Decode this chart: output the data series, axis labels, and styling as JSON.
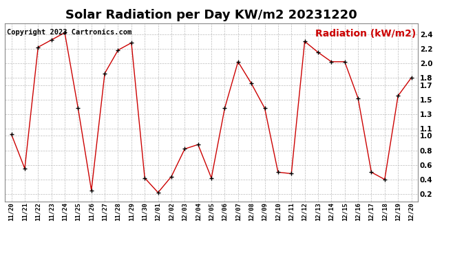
{
  "title": "Solar Radiation per Day KW/m2 20231220",
  "copyright_text": "Copyright 2023 Cartronics.com",
  "legend_label": "Radiation (kW/m2)",
  "labels": [
    "11/20",
    "11/21",
    "11/22",
    "11/23",
    "11/24",
    "11/25",
    "11/26",
    "11/27",
    "11/28",
    "11/29",
    "11/30",
    "12/01",
    "12/02",
    "12/03",
    "12/04",
    "12/05",
    "12/06",
    "12/07",
    "12/08",
    "12/09",
    "12/10",
    "12/11",
    "12/12",
    "12/13",
    "12/14",
    "12/15",
    "12/16",
    "12/17",
    "12/18",
    "12/19",
    "12/20"
  ],
  "values": [
    1.02,
    0.55,
    2.22,
    2.32,
    2.42,
    1.38,
    0.25,
    1.86,
    2.18,
    2.28,
    0.42,
    0.22,
    0.44,
    0.82,
    0.88,
    0.42,
    1.38,
    2.02,
    1.72,
    1.38,
    0.5,
    0.48,
    2.3,
    2.15,
    2.02,
    2.02,
    1.52,
    0.5,
    0.4,
    1.55,
    1.8
  ],
  "line_color": "#cc0000",
  "marker_color": "#000000",
  "background_color": "#ffffff",
  "grid_color": "#bbbbbb",
  "ylim": [
    0.1,
    2.55
  ],
  "yticks": [
    0.2,
    0.4,
    0.6,
    0.8,
    1.0,
    1.1,
    1.3,
    1.5,
    1.7,
    1.8,
    2.0,
    2.2,
    2.4
  ],
  "title_fontsize": 13,
  "copyright_fontsize": 7.5,
  "legend_fontsize": 10
}
